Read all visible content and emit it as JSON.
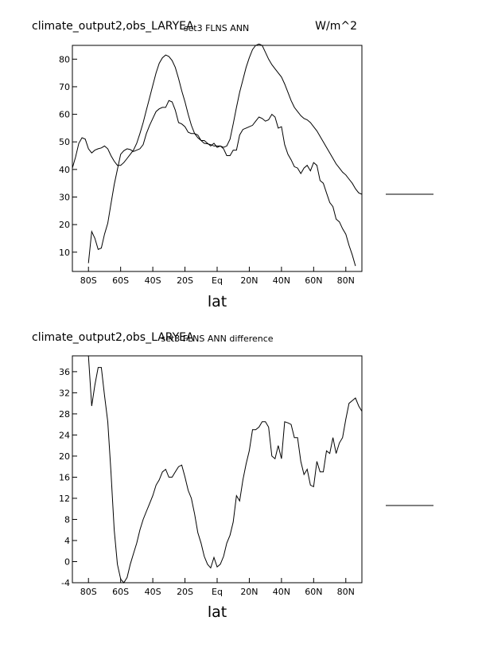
{
  "chart_data": [
    {
      "type": "line",
      "title_left": "climate_output2,obs_LARYEA",
      "title_center": "set3 FLNS ANN",
      "title_right": "W/m^2",
      "xlabel": "lat",
      "ylabel": "",
      "xlim": [
        -90,
        90
      ],
      "ylim": [
        3,
        85
      ],
      "grid": false,
      "x_ticks": [
        -80,
        -60,
        -40,
        -20,
        0,
        20,
        40,
        60,
        80
      ],
      "x_tick_labels": [
        "80S",
        "60S",
        "40S",
        "20S",
        "Eq",
        "20N",
        "40N",
        "60N",
        "80N"
      ],
      "y_ticks": [
        10,
        20,
        30,
        40,
        50,
        60,
        70,
        80
      ],
      "y_tick_labels": [
        "10",
        "20",
        "30",
        "40",
        "50",
        "60",
        "70",
        "80"
      ],
      "series": [
        {
          "x": [
            -90,
            -88,
            -86,
            -84,
            -82,
            -80,
            -78,
            -76,
            -74,
            -72,
            -70,
            -68,
            -66,
            -64,
            -62,
            -60,
            -58,
            -56,
            -54,
            -52,
            -50,
            -48,
            -46,
            -44,
            -42,
            -40,
            -38,
            -36,
            -34,
            -32,
            -30,
            -28,
            -26,
            -24,
            -22,
            -20,
            -18,
            -16,
            -14,
            -12,
            -10,
            -8,
            -6,
            -4,
            -2,
            0,
            2,
            4,
            6,
            8,
            10,
            12,
            14,
            16,
            18,
            20,
            22,
            24,
            26,
            28,
            30,
            32,
            34,
            36,
            38,
            40,
            42,
            44,
            46,
            48,
            50,
            52,
            54,
            56,
            58,
            60,
            62,
            64,
            66,
            68,
            70,
            72,
            74,
            76,
            78,
            80,
            82,
            84,
            86,
            88,
            90
          ],
          "values": [
            40.5,
            44.5,
            49.5,
            51.5,
            51.0,
            47.5,
            46.0,
            47.0,
            47.5,
            47.8,
            48.5,
            47.5,
            45.0,
            43.0,
            41.5,
            41.5,
            42.5,
            44.0,
            45.5,
            47.0,
            49.5,
            53.0,
            57.0,
            61.5,
            66.0,
            70.5,
            75.0,
            78.5,
            80.5,
            81.5,
            81.0,
            79.5,
            77.0,
            73.0,
            68.5,
            64.5,
            60.0,
            56.0,
            53.0,
            51.5,
            50.5,
            49.5,
            49.3,
            49.0,
            48.5,
            48.5,
            48.5,
            48.0,
            48.5,
            51.0,
            56.5,
            62.5,
            68.0,
            72.5,
            77.0,
            80.5,
            83.5,
            85.0,
            85.5,
            85.0,
            82.5,
            80.0,
            78.0,
            76.5,
            75.0,
            73.5,
            71.0,
            68.0,
            65.0,
            62.5,
            61.0,
            59.5,
            58.5,
            58.0,
            57.0,
            55.5,
            54.0,
            52.0,
            50.0,
            48.0,
            46.0,
            44.0,
            42.0,
            40.5,
            39.0,
            38.0,
            36.5,
            35.0,
            33.0,
            31.5,
            31.0
          ]
        },
        {
          "x": [
            -80,
            -78,
            -76,
            -74,
            -72,
            -70,
            -68,
            -66,
            -64,
            -62,
            -60,
            -58,
            -56,
            -54,
            -52,
            -50,
            -48,
            -46,
            -44,
            -42,
            -40,
            -38,
            -36,
            -34,
            -32,
            -30,
            -28,
            -26,
            -24,
            -22,
            -20,
            -18,
            -16,
            -14,
            -12,
            -10,
            -8,
            -6,
            -4,
            -2,
            0,
            2,
            4,
            6,
            8,
            10,
            12,
            14,
            16,
            18,
            20,
            22,
            24,
            26,
            28,
            30,
            32,
            34,
            36,
            38,
            40,
            42,
            44,
            46,
            48,
            50,
            52,
            54,
            56,
            58,
            60,
            62,
            64,
            66,
            68,
            70,
            72,
            74,
            76,
            78,
            80,
            82,
            84,
            86
          ],
          "values": [
            6.0,
            17.5,
            15.0,
            11.0,
            11.5,
            16.5,
            20.5,
            27.5,
            34.5,
            40.0,
            45.5,
            46.8,
            47.5,
            47.2,
            46.5,
            47.0,
            47.5,
            49.0,
            53.0,
            56.0,
            58.5,
            61.0,
            62.0,
            62.5,
            62.5,
            65.0,
            64.5,
            61.5,
            57.0,
            56.5,
            55.5,
            53.5,
            53.0,
            53.0,
            52.5,
            50.5,
            50.5,
            49.5,
            48.5,
            49.5,
            48.0,
            48.5,
            47.5,
            45.0,
            45.0,
            47.0,
            47.0,
            52.5,
            54.5,
            55.0,
            55.5,
            56.0,
            57.5,
            59.0,
            58.5,
            57.5,
            58.0,
            60.0,
            59.0,
            55.0,
            55.5,
            49.0,
            45.5,
            43.5,
            41.0,
            40.5,
            38.5,
            40.5,
            41.5,
            39.5,
            42.5,
            41.5,
            36.0,
            35.0,
            31.5,
            28.0,
            26.5,
            22.0,
            21.0,
            18.5,
            16.5,
            12.5,
            9.0,
            5.0
          ]
        }
      ],
      "side_legend_lines": 1
    },
    {
      "type": "line",
      "title_left": "climate_output2,obs_LARYEA",
      "title_center": "set3 FLNS ANN difference",
      "title_right": "",
      "xlabel": "lat",
      "ylabel": "",
      "xlim": [
        -90,
        90
      ],
      "ylim": [
        -4,
        39
      ],
      "grid": false,
      "x_ticks": [
        -80,
        -60,
        -40,
        -20,
        0,
        20,
        40,
        60,
        80
      ],
      "x_tick_labels": [
        "80S",
        "60S",
        "40S",
        "20S",
        "Eq",
        "20N",
        "40N",
        "60N",
        "80N"
      ],
      "y_ticks": [
        -4,
        0,
        4,
        8,
        12,
        16,
        20,
        24,
        28,
        32,
        36
      ],
      "y_tick_labels": [
        "-4",
        "0",
        "4",
        "8",
        "12",
        "16",
        "20",
        "24",
        "28",
        "32",
        "36"
      ],
      "series": [
        {
          "x": [
            -80,
            -78,
            -76,
            -74,
            -72,
            -70,
            -68,
            -66,
            -64,
            -62,
            -60,
            -58,
            -56,
            -54,
            -52,
            -50,
            -48,
            -46,
            -44,
            -42,
            -40,
            -38,
            -36,
            -34,
            -32,
            -30,
            -28,
            -26,
            -24,
            -22,
            -20,
            -18,
            -16,
            -14,
            -12,
            -10,
            -8,
            -6,
            -4,
            -2,
            0,
            2,
            4,
            6,
            8,
            10,
            12,
            14,
            16,
            18,
            20,
            22,
            24,
            26,
            28,
            30,
            32,
            34,
            36,
            38,
            40,
            42,
            44,
            46,
            48,
            50,
            52,
            54,
            56,
            58,
            60,
            62,
            64,
            66,
            68,
            70,
            72,
            74,
            76,
            78,
            80,
            82,
            84,
            86,
            88,
            90
          ],
          "values": [
            39.0,
            29.5,
            33.5,
            36.8,
            36.8,
            31.5,
            26.5,
            17.0,
            6.0,
            -0.5,
            -3.3,
            -4.0,
            -3.0,
            -0.5,
            1.5,
            3.5,
            6.0,
            8.0,
            9.5,
            11.0,
            12.5,
            14.5,
            15.5,
            17.0,
            17.5,
            16.0,
            16.0,
            17.0,
            18.0,
            18.3,
            16.0,
            13.5,
            12.0,
            9.0,
            5.5,
            3.5,
            1.0,
            -0.5,
            -1.2,
            0.8,
            -1.0,
            -0.5,
            1.0,
            3.5,
            5.0,
            7.5,
            12.5,
            11.5,
            15.5,
            18.5,
            21.0,
            25.0,
            25.0,
            25.5,
            26.5,
            26.5,
            25.5,
            20.0,
            19.5,
            22.0,
            19.5,
            26.5,
            26.3,
            26.0,
            23.5,
            23.5,
            19.0,
            16.5,
            17.5,
            14.5,
            14.2,
            19.0,
            17.0,
            17.0,
            21.0,
            20.5,
            23.5,
            20.5,
            22.5,
            23.5,
            27.0,
            30.0,
            30.5,
            31.0,
            29.5,
            28.5
          ]
        }
      ],
      "side_legend_lines": 1
    }
  ]
}
